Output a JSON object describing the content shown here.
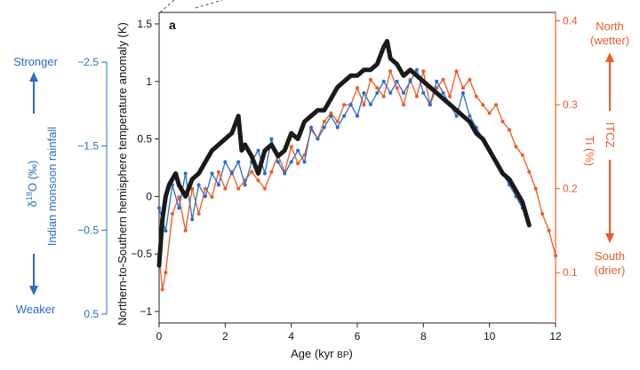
{
  "chart_data": {
    "type": "line",
    "panel_label": "a",
    "xlabel_main": "Age (kyr ",
    "xlabel_small": "BP",
    "xlabel_close": ")",
    "x_ticks": [
      "0",
      "2",
      "4",
      "6",
      "8",
      "10",
      "12"
    ],
    "xlim": [
      0,
      12
    ],
    "left_axis": {
      "label": "Northern-to-Southern hemisphere temperature anomaly (K)",
      "ylim": [
        -1.1,
        1.6
      ],
      "ticks": [
        "1.5",
        "1",
        "0.5",
        "0",
        "−0.5",
        "−1"
      ]
    },
    "right_axis": {
      "label": "Ti (%)",
      "ylim": [
        0.04,
        0.41
      ],
      "ticks": [
        "0.4",
        "0.3",
        "0.2",
        "0.1"
      ]
    },
    "d18o_axis": {
      "label_main": "δ",
      "label_sup": "18",
      "label_rest": "O (‰)",
      "title": "Indian monsoon rainfall",
      "ticks": [
        "−2.5",
        "−1.5",
        "−0.5",
        "0.5"
      ],
      "top_label": "Stronger",
      "bottom_label": "Weaker"
    },
    "itcz_axis": {
      "title": "ITCZ",
      "top_label_1": "North",
      "top_label_2": "(wetter)",
      "bottom_label_1": "South",
      "bottom_label_2": "(drier)"
    },
    "colors": {
      "temperature": "#1a1a1a",
      "monsoon": "#2b6cc4",
      "ti": "#f05a28"
    },
    "series": [
      {
        "key": "temperature",
        "axis": "left",
        "x": [
          0,
          0.1,
          0.2,
          0.3,
          0.5,
          0.6,
          0.8,
          1.0,
          1.2,
          1.4,
          1.6,
          1.8,
          2.0,
          2.2,
          2.4,
          2.5,
          2.6,
          2.8,
          3.0,
          3.2,
          3.4,
          3.6,
          3.8,
          4.0,
          4.2,
          4.4,
          4.6,
          4.8,
          5.0,
          5.2,
          5.4,
          5.6,
          5.8,
          6.0,
          6.2,
          6.4,
          6.6,
          6.8,
          6.9,
          7.0,
          7.2,
          7.4,
          7.6,
          7.8,
          8.0,
          8.2,
          8.4,
          8.6,
          8.8,
          9.0,
          9.2,
          9.4,
          9.6,
          9.8,
          10.0,
          10.2,
          10.4,
          10.6,
          10.8,
          11.0,
          11.2
        ],
        "y": [
          -0.6,
          -0.2,
          0.0,
          0.1,
          0.2,
          0.1,
          0.0,
          0.15,
          0.2,
          0.3,
          0.4,
          0.45,
          0.5,
          0.55,
          0.7,
          0.4,
          0.45,
          0.35,
          0.2,
          0.4,
          0.45,
          0.35,
          0.4,
          0.55,
          0.5,
          0.65,
          0.7,
          0.75,
          0.75,
          0.85,
          0.95,
          1.0,
          1.05,
          1.05,
          1.1,
          1.1,
          1.15,
          1.3,
          1.35,
          1.2,
          1.15,
          1.05,
          1.1,
          1.05,
          1.0,
          0.95,
          0.9,
          0.85,
          0.8,
          0.75,
          0.7,
          0.65,
          0.55,
          0.5,
          0.4,
          0.3,
          0.2,
          0.15,
          0.05,
          -0.05,
          -0.25
        ]
      },
      {
        "key": "monsoon",
        "axis": "left",
        "x": [
          0,
          0.2,
          0.4,
          0.6,
          0.8,
          1.0,
          1.2,
          1.4,
          1.6,
          1.8,
          2.0,
          2.2,
          2.4,
          2.6,
          2.8,
          3.0,
          3.2,
          3.4,
          3.6,
          3.8,
          4.0,
          4.2,
          4.4,
          4.6,
          4.8,
          5.0,
          5.2,
          5.4,
          5.6,
          5.8,
          6.0,
          6.2,
          6.4,
          6.6,
          6.8,
          7.0,
          7.2,
          7.4,
          7.6,
          7.8,
          8.0,
          8.2,
          8.4,
          8.6,
          8.8,
          9.0,
          9.2,
          9.4,
          9.6,
          9.8,
          10.0,
          10.2,
          10.4,
          10.6,
          10.8,
          11.0
        ],
        "y": [
          -0.1,
          -0.3,
          0.1,
          -0.1,
          0.2,
          -0.2,
          0.1,
          0.0,
          0.2,
          0.1,
          0.3,
          0.2,
          0.3,
          0.1,
          0.3,
          0.4,
          0.2,
          0.5,
          0.3,
          0.2,
          0.3,
          0.4,
          0.3,
          0.6,
          0.5,
          0.6,
          0.7,
          0.6,
          0.7,
          0.8,
          0.7,
          0.9,
          0.8,
          0.9,
          1.0,
          0.9,
          1.0,
          0.9,
          1.0,
          1.1,
          0.9,
          0.8,
          1.0,
          0.9,
          0.8,
          0.7,
          0.9,
          0.7,
          0.6,
          0.5,
          0.4,
          0.3,
          0.2,
          0.1,
          0.0,
          -0.1
        ]
      },
      {
        "key": "ti",
        "axis": "right",
        "x": [
          0,
          0.1,
          0.2,
          0.4,
          0.6,
          0.8,
          1.0,
          1.2,
          1.4,
          1.6,
          1.8,
          2.0,
          2.2,
          2.4,
          2.6,
          2.8,
          3.0,
          3.2,
          3.4,
          3.6,
          3.8,
          4.0,
          4.2,
          4.4,
          4.6,
          4.8,
          5.0,
          5.2,
          5.4,
          5.6,
          5.8,
          6.0,
          6.2,
          6.4,
          6.6,
          6.8,
          7.0,
          7.2,
          7.4,
          7.6,
          7.8,
          8.0,
          8.2,
          8.4,
          8.6,
          8.8,
          9.0,
          9.2,
          9.4,
          9.6,
          9.8,
          10.0,
          10.2,
          10.4,
          10.6,
          10.8,
          11.0,
          11.2,
          11.4,
          11.6,
          11.8,
          12.0
        ],
        "y": [
          0.12,
          0.08,
          0.1,
          0.17,
          0.19,
          0.15,
          0.2,
          0.17,
          0.2,
          0.19,
          0.22,
          0.2,
          0.22,
          0.2,
          0.21,
          0.22,
          0.21,
          0.2,
          0.22,
          0.24,
          0.22,
          0.25,
          0.23,
          0.24,
          0.27,
          0.26,
          0.28,
          0.29,
          0.28,
          0.3,
          0.3,
          0.32,
          0.3,
          0.33,
          0.32,
          0.31,
          0.34,
          0.32,
          0.3,
          0.33,
          0.31,
          0.34,
          0.3,
          0.32,
          0.33,
          0.31,
          0.34,
          0.32,
          0.33,
          0.31,
          0.3,
          0.29,
          0.3,
          0.28,
          0.27,
          0.25,
          0.24,
          0.22,
          0.2,
          0.17,
          0.15,
          0.12
        ]
      }
    ]
  }
}
